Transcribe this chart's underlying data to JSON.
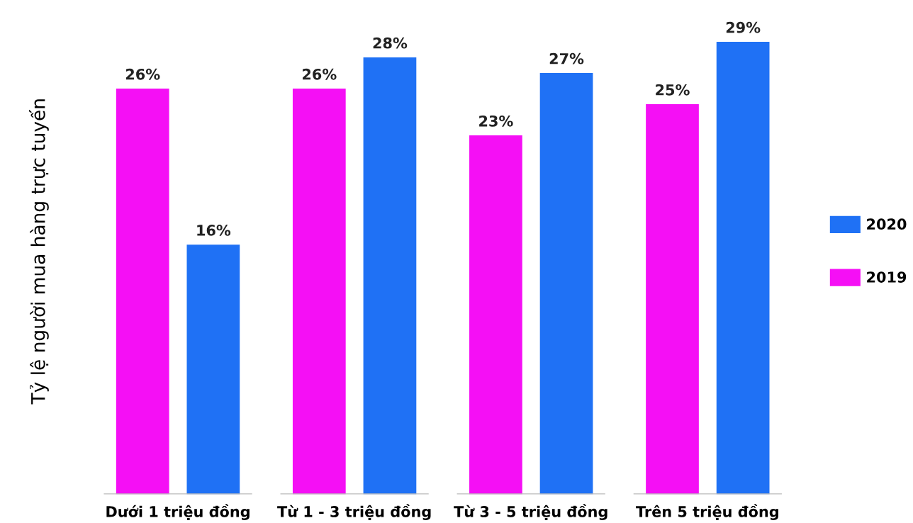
{
  "chart_data": {
    "type": "bar",
    "ylabel": "Tỷ lệ người mua hàng trực tuyến",
    "categories": [
      "Dưới 1 triệu đồng",
      "Từ 1 - 3 triệu đồng",
      "Từ 3 - 5 triệu đồng",
      "Trên 5 triệu đồng"
    ],
    "series": [
      {
        "name": "2019",
        "color": "#f50ff5",
        "values": [
          26,
          26,
          23,
          25
        ],
        "value_labels": [
          "26%",
          "26%",
          "23%",
          "25%"
        ]
      },
      {
        "name": "2020",
        "color": "#1f71f5",
        "values": [
          16,
          28,
          27,
          29
        ],
        "value_labels": [
          "16%",
          "28%",
          "27%",
          "29%"
        ]
      }
    ],
    "grid": false,
    "legend": "right"
  }
}
